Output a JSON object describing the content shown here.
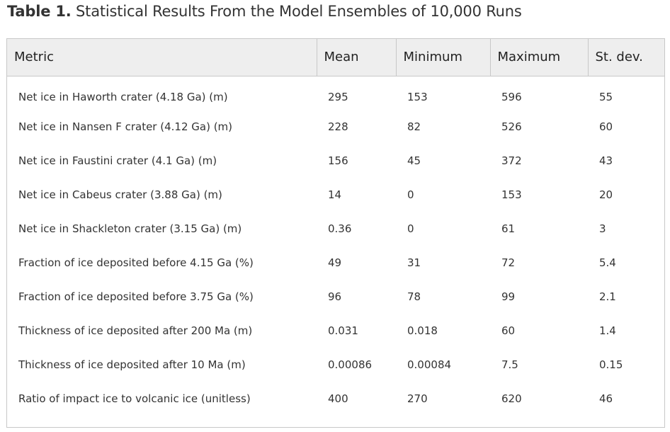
{
  "caption": {
    "lead": "Table 1.",
    "text": "Statistical Results From the Model Ensembles of 10,000 Runs"
  },
  "table": {
    "headers": [
      "Metric",
      "Mean",
      "Minimum",
      "Maximum",
      "St. dev."
    ],
    "rows": [
      [
        "Net ice in Haworth crater (4.18 Ga) (m)",
        "295",
        "153",
        "596",
        "55"
      ],
      [
        "Net ice in Nansen F crater (4.12 Ga) (m)",
        "228",
        "82",
        "526",
        "60"
      ],
      [
        "Net ice in Faustini crater (4.1 Ga) (m)",
        "156",
        "45",
        "372",
        "43"
      ],
      [
        "Net ice in Cabeus crater (3.88 Ga) (m)",
        "14",
        "0",
        "153",
        "20"
      ],
      [
        "Net ice in Shackleton crater (3.15 Ga) (m)",
        "0.36",
        "0",
        "61",
        "3"
      ],
      [
        "Fraction of ice deposited before 4.15 Ga (%)",
        "49",
        "31",
        "72",
        "5.4"
      ],
      [
        "Fraction of ice deposited before 3.75 Ga (%)",
        "96",
        "78",
        "99",
        "2.1"
      ],
      [
        "Thickness of ice deposited after 200 Ma (m)",
        "0.031",
        "0.018",
        "60",
        "1.4"
      ],
      [
        "Thickness of ice deposited after 10 Ma (m)",
        "0.00086",
        "0.00084",
        "7.5",
        "0.15"
      ],
      [
        "Ratio of impact ice to volcanic ice (unitless)",
        "400",
        "270",
        "620",
        "46"
      ]
    ]
  }
}
